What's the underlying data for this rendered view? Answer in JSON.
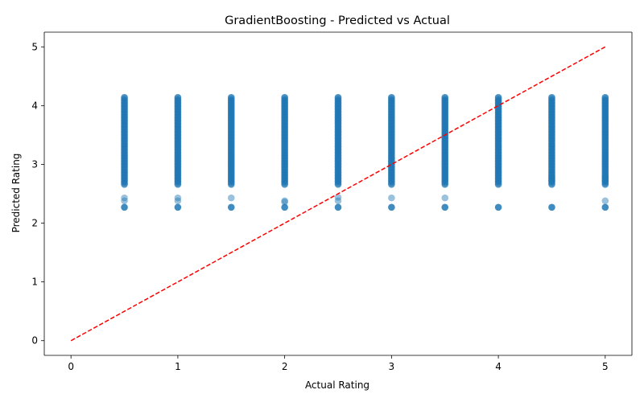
{
  "chart_data": {
    "type": "scatter",
    "title": "GradientBoosting - Predicted vs Actual",
    "xlabel": "Actual Rating",
    "ylabel": "Predicted Rating",
    "xlim": [
      -0.25,
      5.25
    ],
    "ylim": [
      -0.25,
      5.25
    ],
    "xticks": [
      0,
      1,
      2,
      3,
      4,
      5
    ],
    "yticks": [
      0,
      1,
      2,
      3,
      4,
      5
    ],
    "grid": false,
    "series": [
      {
        "color": "#1f77b4",
        "opacity": 0.35,
        "columns": [
          {
            "x": 0.5,
            "min": 2.66,
            "max": 4.14
          },
          {
            "x": 1.0,
            "min": 2.66,
            "max": 4.14
          },
          {
            "x": 1.5,
            "min": 2.66,
            "max": 4.14
          },
          {
            "x": 2.0,
            "min": 2.66,
            "max": 4.14
          },
          {
            "x": 2.5,
            "min": 2.66,
            "max": 4.14
          },
          {
            "x": 3.0,
            "min": 2.66,
            "max": 4.14
          },
          {
            "x": 3.5,
            "min": 2.66,
            "max": 4.14
          },
          {
            "x": 4.0,
            "min": 2.66,
            "max": 4.14
          },
          {
            "x": 4.5,
            "min": 2.66,
            "max": 4.14
          },
          {
            "x": 5.0,
            "min": 2.66,
            "max": 4.14
          }
        ],
        "outliers": [
          {
            "x": 0.5,
            "y": 2.43
          },
          {
            "x": 0.5,
            "y": 2.38
          },
          {
            "x": 0.5,
            "y": 2.27
          },
          {
            "x": 1.0,
            "y": 2.43
          },
          {
            "x": 1.0,
            "y": 2.38
          },
          {
            "x": 1.0,
            "y": 2.27
          },
          {
            "x": 1.5,
            "y": 2.43
          },
          {
            "x": 1.5,
            "y": 2.27
          },
          {
            "x": 2.0,
            "y": 2.38
          },
          {
            "x": 2.0,
            "y": 2.36
          },
          {
            "x": 2.0,
            "y": 2.27
          },
          {
            "x": 2.5,
            "y": 2.44
          },
          {
            "x": 2.5,
            "y": 2.38
          },
          {
            "x": 2.5,
            "y": 2.27
          },
          {
            "x": 3.0,
            "y": 2.43
          },
          {
            "x": 3.0,
            "y": 2.27
          },
          {
            "x": 3.5,
            "y": 2.43
          },
          {
            "x": 3.5,
            "y": 2.27
          },
          {
            "x": 4.0,
            "y": 2.27
          },
          {
            "x": 4.5,
            "y": 2.27
          },
          {
            "x": 4.5,
            "y": 2.72
          },
          {
            "x": 4.5,
            "y": 2.78
          },
          {
            "x": 5.0,
            "y": 2.38
          },
          {
            "x": 5.0,
            "y": 2.27
          },
          {
            "x": 5.0,
            "y": 2.72
          },
          {
            "x": 5.0,
            "y": 2.78
          }
        ]
      }
    ],
    "reference_line": {
      "from": [
        0,
        0
      ],
      "to": [
        5,
        5
      ],
      "color": "#ff0000",
      "style": "dashed"
    }
  }
}
